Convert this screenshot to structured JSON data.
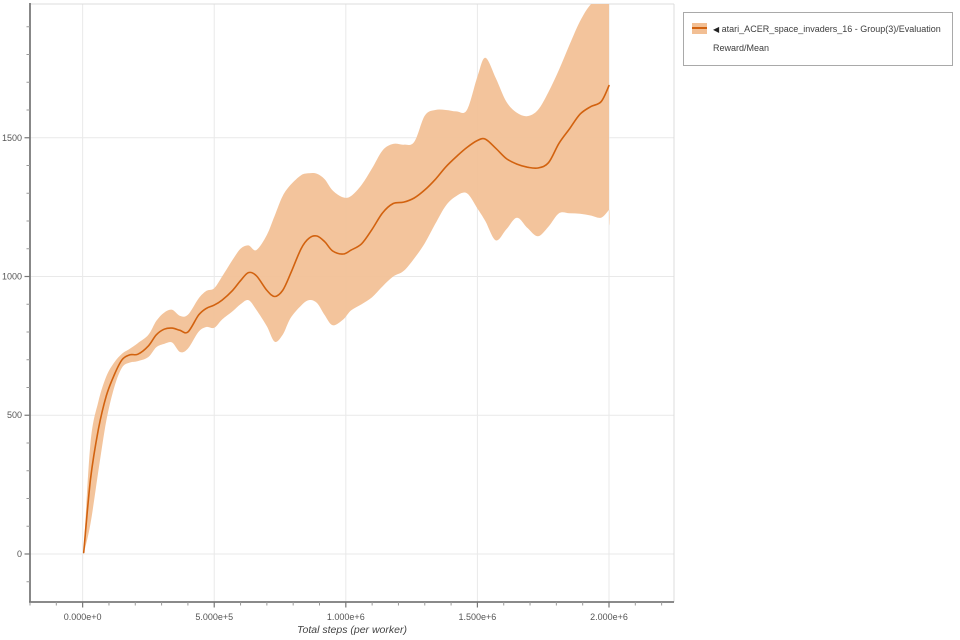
{
  "colors": {
    "line": "#d2620f",
    "band": "#f2bf94",
    "grid": "#e9e9e9",
    "spine_dark": "#7a7a7a",
    "spine_light": "#dcdcdc",
    "tick_major": "#777777",
    "tick_minor": "#9a9a9a",
    "tick_label": "#555555"
  },
  "legend": {
    "collapse_icon": "◀"
  },
  "chart_data": {
    "type": "line",
    "title": "",
    "xlabel": "Total steps (per worker)",
    "ylabel": "",
    "grid": "major",
    "legend_position": "top-right",
    "xlim": [
      -200000,
      2247000
    ],
    "ylim": [
      -173,
      1982
    ],
    "minor_x_step": 100000,
    "minor_y_step": 100,
    "x_ticks": [
      {
        "value": 0,
        "label": "0.000e+0"
      },
      {
        "value": 500000,
        "label": "5.000e+5"
      },
      {
        "value": 1000000,
        "label": "1.000e+6"
      },
      {
        "value": 1500000,
        "label": "1.500e+6"
      },
      {
        "value": 2000000,
        "label": "2.000e+6"
      }
    ],
    "y_ticks": [
      {
        "value": 0,
        "label": "0"
      },
      {
        "value": 500,
        "label": "500"
      },
      {
        "value": 1000,
        "label": "1000"
      },
      {
        "value": 1500,
        "label": "1500"
      }
    ],
    "series": [
      {
        "name": "atari_ACER_space_invaders_16 - Group(3)/Evaluation Reward/Mean",
        "line_color": "#d2620f",
        "band_color": "#f2bf94",
        "x": [
          4000,
          30000,
          60000,
          90000,
          120000,
          150000,
          180000,
          210000,
          250000,
          280000,
          310000,
          340000,
          370000,
          400000,
          440000,
          470000,
          500000,
          530000,
          570000,
          600000,
          630000,
          660000,
          700000,
          730000,
          760000,
          790000,
          830000,
          860000,
          890000,
          920000,
          950000,
          990000,
          1020000,
          1060000,
          1100000,
          1140000,
          1180000,
          1220000,
          1260000,
          1300000,
          1340000,
          1380000,
          1420000,
          1460000,
          1500000,
          1530000,
          1570000,
          1610000,
          1650000,
          1690000,
          1730000,
          1770000,
          1810000,
          1850000,
          1890000,
          1930000,
          1970000,
          2000000
        ],
        "mean": [
          5,
          270,
          450,
          570,
          645,
          700,
          718,
          720,
          750,
          790,
          810,
          814,
          806,
          800,
          860,
          885,
          897,
          915,
          950,
          985,
          1014,
          1003,
          950,
          928,
          950,
          1010,
          1100,
          1138,
          1146,
          1125,
          1092,
          1081,
          1095,
          1118,
          1170,
          1230,
          1263,
          1268,
          1283,
          1312,
          1350,
          1395,
          1432,
          1465,
          1490,
          1495,
          1462,
          1425,
          1405,
          1394,
          1391,
          1410,
          1480,
          1532,
          1585,
          1612,
          1630,
          1688
        ],
        "lower": [
          0,
          110,
          300,
          480,
          600,
          672,
          690,
          695,
          710,
          745,
          757,
          762,
          728,
          740,
          800,
          818,
          815,
          845,
          875,
          900,
          915,
          880,
          820,
          765,
          790,
          850,
          895,
          915,
          905,
          860,
          824,
          845,
          878,
          900,
          925,
          965,
          1000,
          1020,
          1065,
          1120,
          1190,
          1255,
          1290,
          1300,
          1245,
          1200,
          1130,
          1170,
          1212,
          1175,
          1145,
          1180,
          1228,
          1228,
          1226,
          1220,
          1212,
          1240
        ],
        "upper": [
          10,
          400,
          550,
          640,
          690,
          722,
          740,
          760,
          790,
          840,
          870,
          880,
          858,
          862,
          920,
          948,
          958,
          1000,
          1060,
          1100,
          1112,
          1095,
          1150,
          1220,
          1290,
          1330,
          1365,
          1372,
          1370,
          1350,
          1310,
          1285,
          1290,
          1330,
          1390,
          1455,
          1478,
          1475,
          1485,
          1580,
          1600,
          1600,
          1595,
          1600,
          1720,
          1788,
          1715,
          1630,
          1590,
          1578,
          1600,
          1665,
          1745,
          1835,
          1920,
          1980,
          2000,
          2000
        ]
      }
    ]
  }
}
